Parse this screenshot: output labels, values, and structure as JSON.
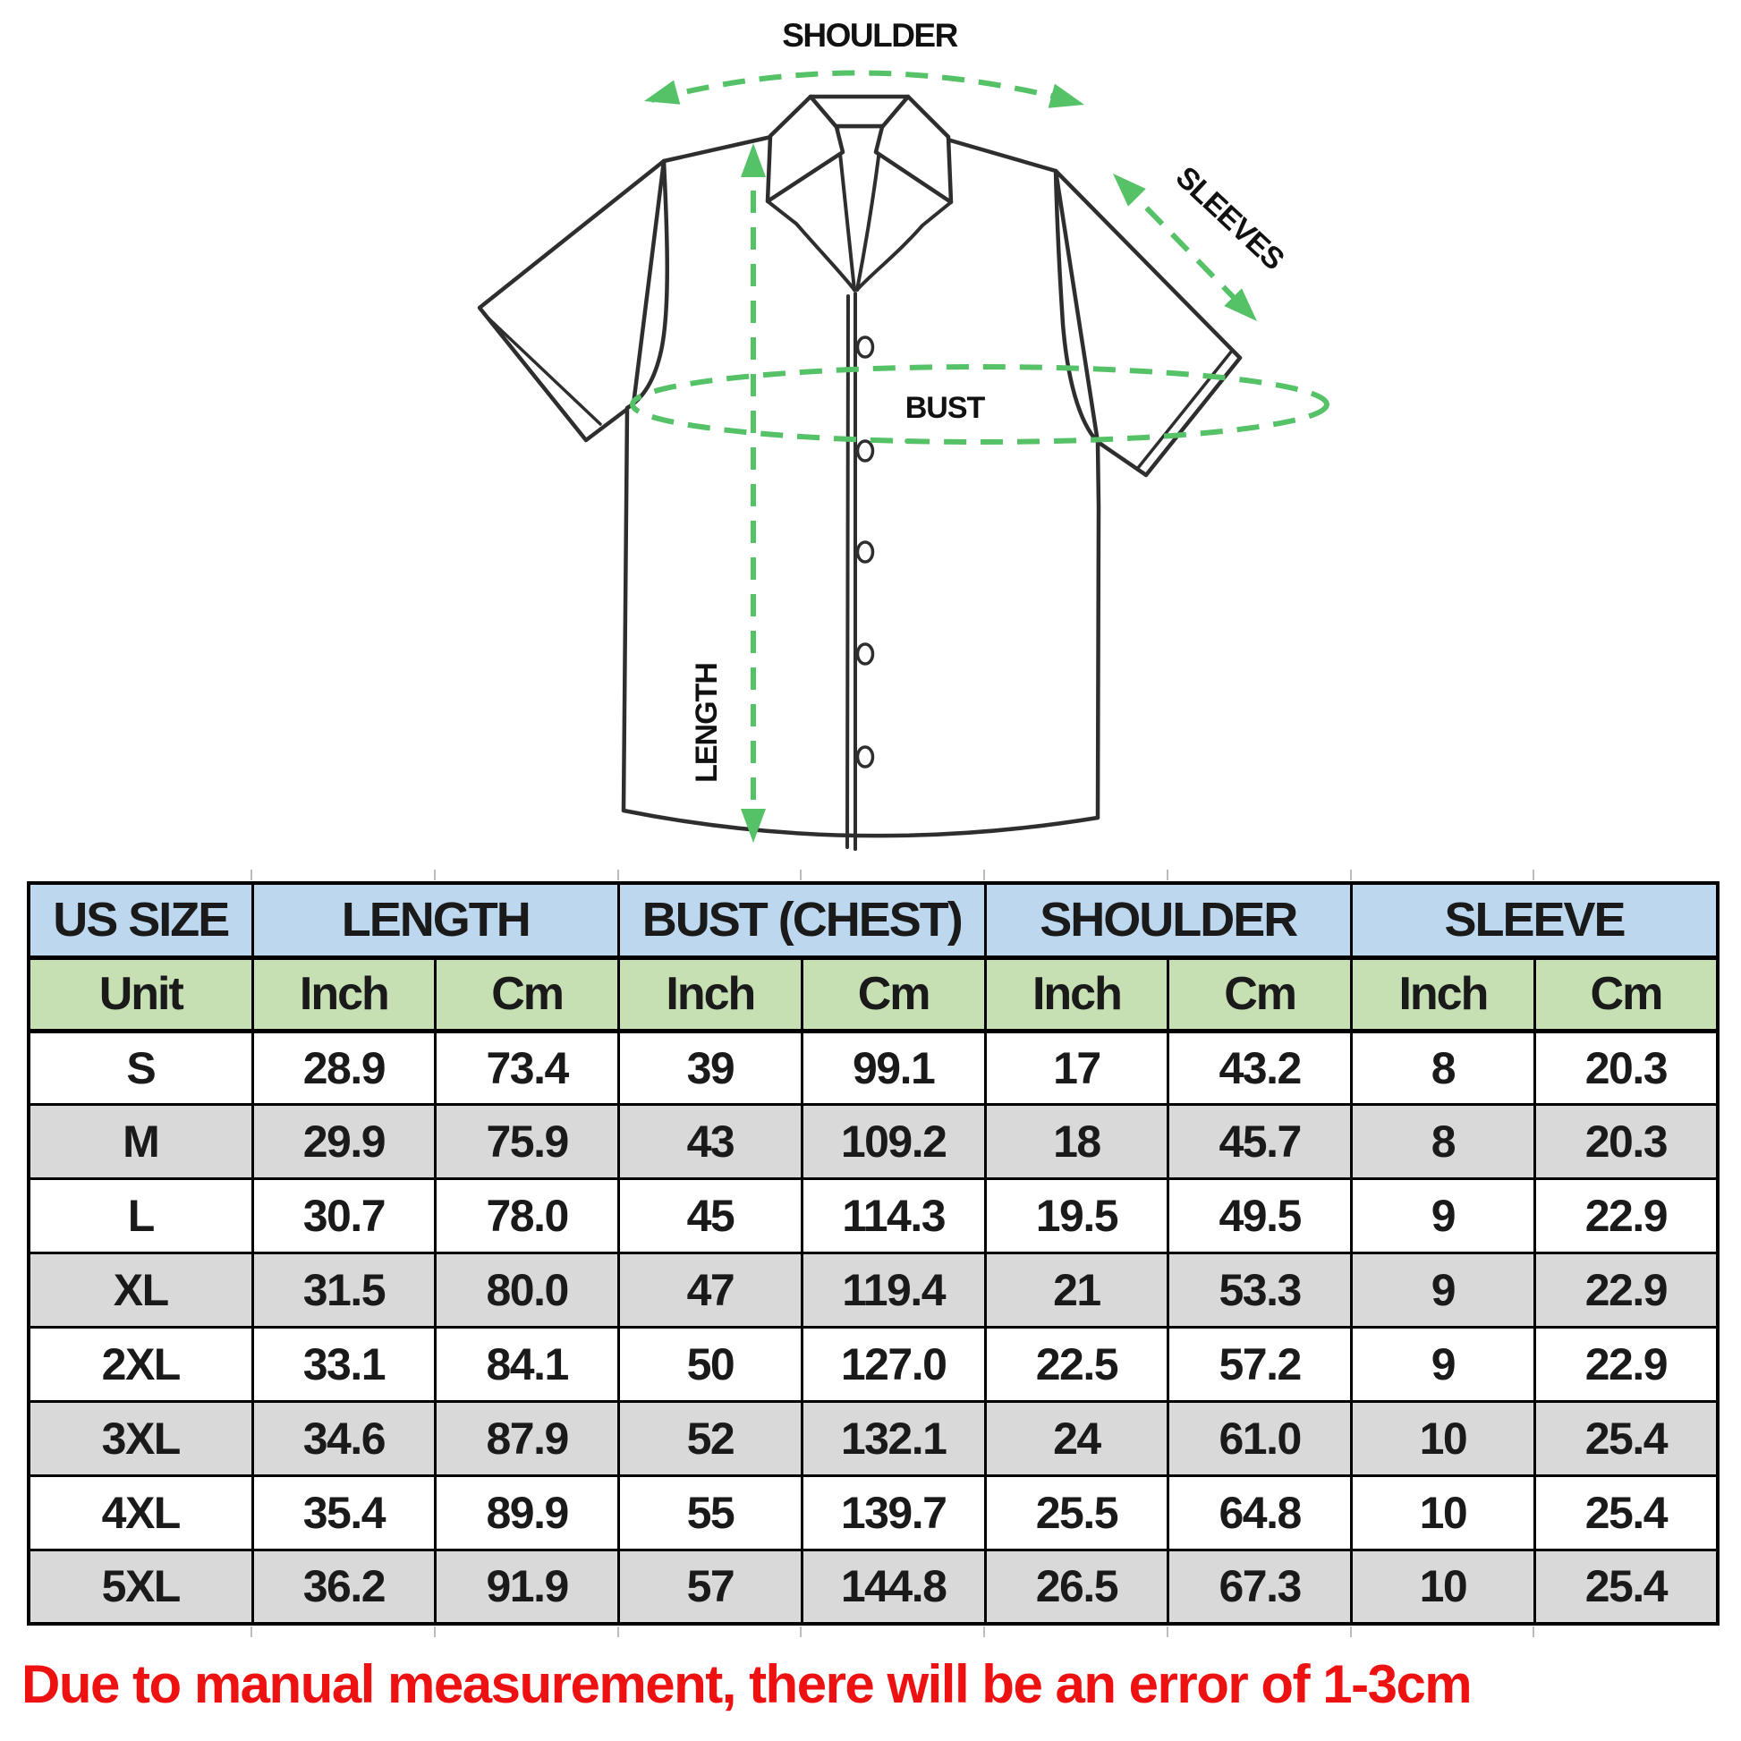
{
  "diagram": {
    "labels": {
      "shoulder": "SHOULDER",
      "sleeves": "SLEEVES",
      "bust": "BUST",
      "length": "LENGTH"
    },
    "colors": {
      "arrow_green": "#55C267",
      "shirt_outline": "#2E2E2E"
    }
  },
  "table": {
    "groups": [
      {
        "label": "US SIZE",
        "span": 1
      },
      {
        "label": "LENGTH",
        "span": 2
      },
      {
        "label": "BUST (CHEST)",
        "span": 2
      },
      {
        "label": "SHOULDER",
        "span": 2
      },
      {
        "label": "SLEEVE",
        "span": 2
      }
    ],
    "unit_row": [
      "Unit",
      "Inch",
      "Cm",
      "Inch",
      "Cm",
      "Inch",
      "Cm",
      "Inch",
      "Cm"
    ],
    "rows": [
      {
        "size": "S",
        "values": [
          "28.9",
          "73.4",
          "39",
          "99.1",
          "17",
          "43.2",
          "8",
          "20.3"
        ]
      },
      {
        "size": "M",
        "values": [
          "29.9",
          "75.9",
          "43",
          "109.2",
          "18",
          "45.7",
          "8",
          "20.3"
        ]
      },
      {
        "size": "L",
        "values": [
          "30.7",
          "78.0",
          "45",
          "114.3",
          "19.5",
          "49.5",
          "9",
          "22.9"
        ]
      },
      {
        "size": "XL",
        "values": [
          "31.5",
          "80.0",
          "47",
          "119.4",
          "21",
          "53.3",
          "9",
          "22.9"
        ]
      },
      {
        "size": "2XL",
        "values": [
          "33.1",
          "84.1",
          "50",
          "127.0",
          "22.5",
          "57.2",
          "9",
          "22.9"
        ]
      },
      {
        "size": "3XL",
        "values": [
          "34.6",
          "87.9",
          "52",
          "132.1",
          "24",
          "61.0",
          "10",
          "25.4"
        ]
      },
      {
        "size": "4XL",
        "values": [
          "35.4",
          "89.9",
          "55",
          "139.7",
          "25.5",
          "64.8",
          "10",
          "25.4"
        ]
      },
      {
        "size": "5XL",
        "values": [
          "36.2",
          "91.9",
          "57",
          "144.8",
          "26.5",
          "67.3",
          "10",
          "25.4"
        ]
      }
    ],
    "colors": {
      "group_header_bg": "#BDD7EE",
      "unit_row_bg": "#C6E0B4",
      "alt_row_bg": "#D9D9D9",
      "row_bg": "#FFFFFF",
      "border": "#000000"
    }
  },
  "note": {
    "text": "Due to manual measurement, there will be an error of 1-3cm",
    "color": "#EE1111"
  }
}
